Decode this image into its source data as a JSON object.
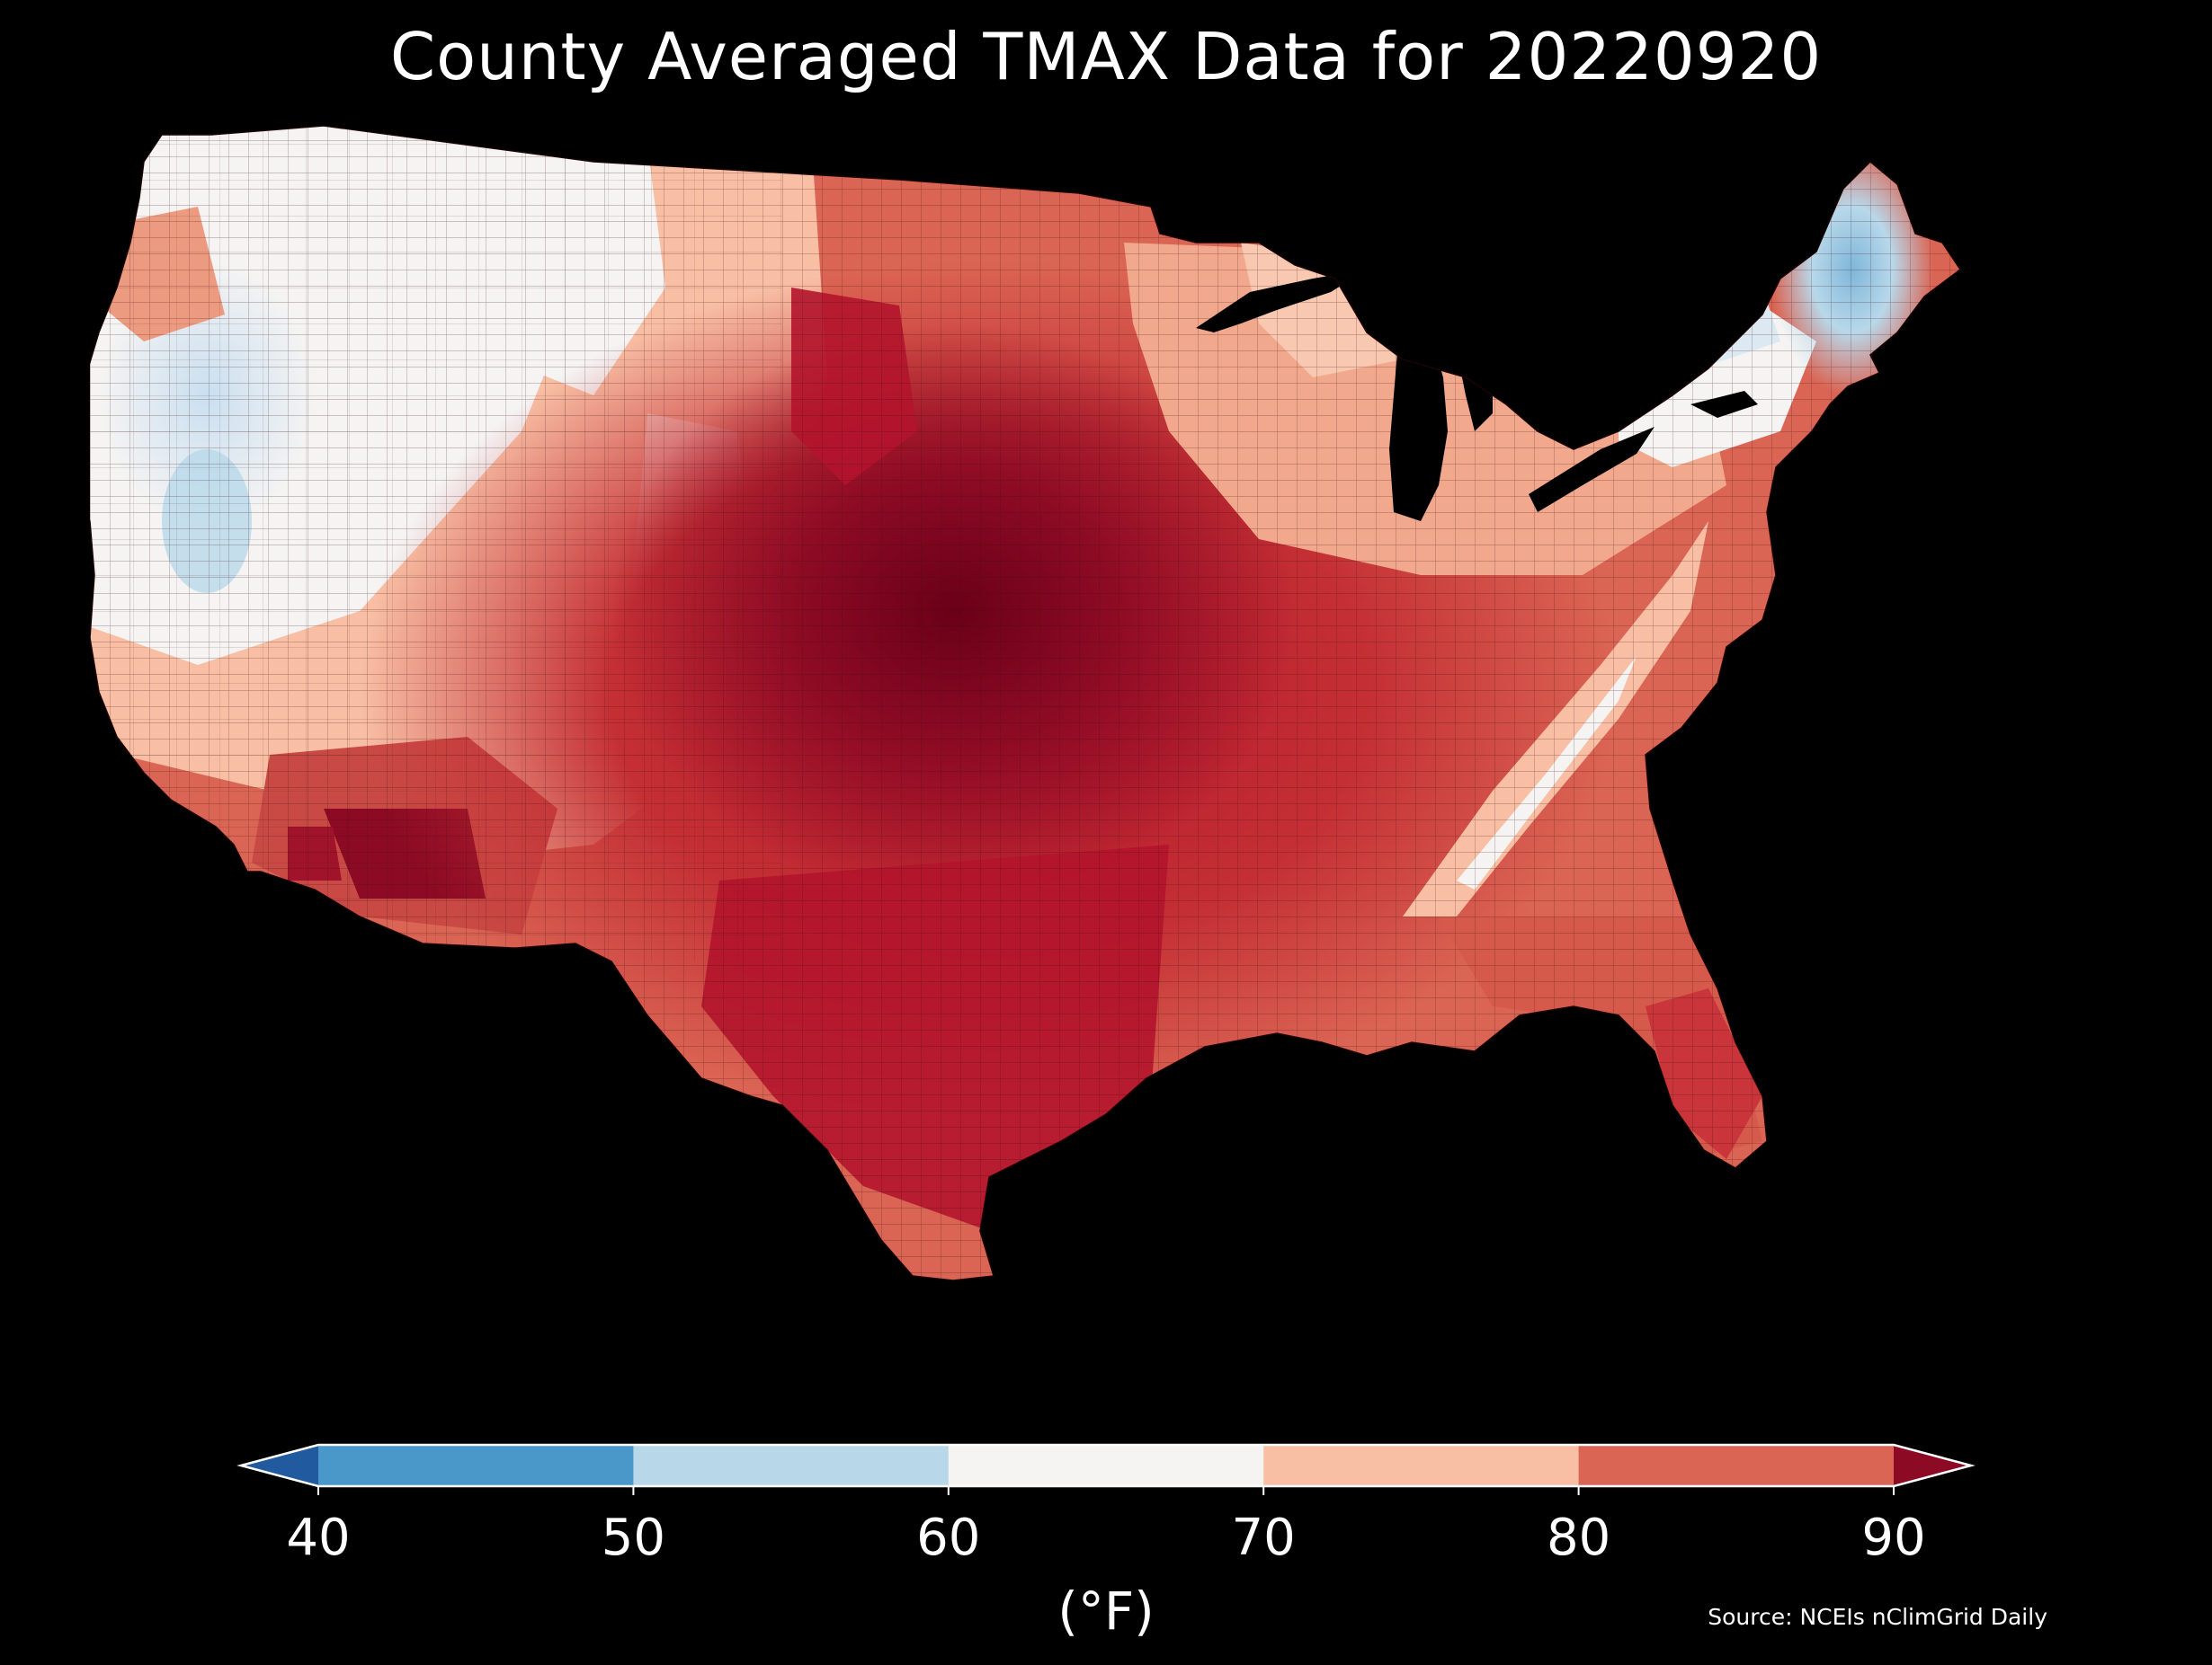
{
  "title": "County Averaged TMAX Data for 20220920",
  "colorbar": {
    "label": "(°F)",
    "ticks": [
      "40",
      "50",
      "60",
      "70",
      "80",
      "90"
    ],
    "bins": [
      {
        "range": [
          40,
          50
        ],
        "color": "#4a97c9"
      },
      {
        "range": [
          50,
          60
        ],
        "color": "#b8d8ea"
      },
      {
        "range": [
          60,
          70
        ],
        "color": "#f5f4f3"
      },
      {
        "range": [
          70,
          80
        ],
        "color": "#f8bfa4"
      },
      {
        "range": [
          80,
          90
        ],
        "color": "#db6554"
      }
    ],
    "under_color": "#215a9f",
    "over_color": "#8c0a24",
    "extend": "both"
  },
  "source": "Source: NCEIs nClimGrid Daily",
  "legend_colors": {
    "40-50": "#4a97c9",
    "50-60": "#b8d8ea",
    "60-70": "#f5f4f3",
    "70-80": "#f8bfa4",
    "80-90": "#db6554",
    "above-90": "#8c0a24",
    "below-40": "#215a9f"
  }
}
